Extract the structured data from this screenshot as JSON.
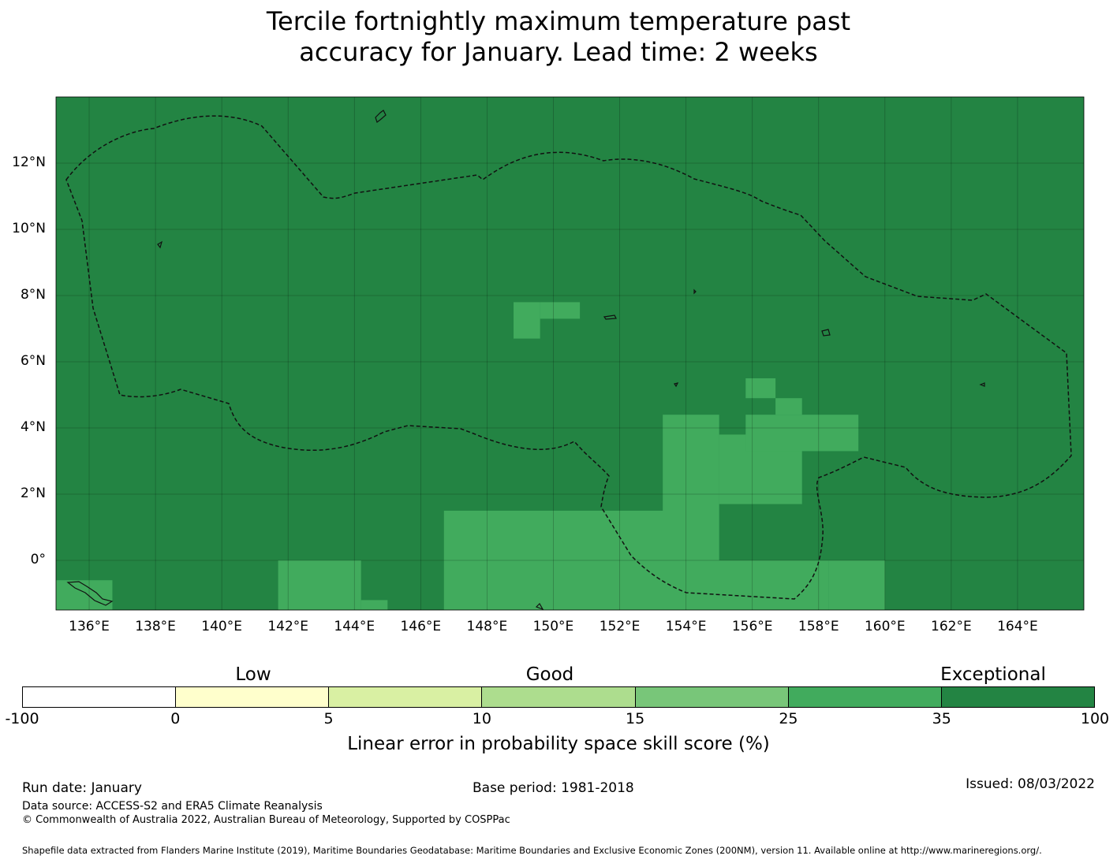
{
  "title": {
    "line1": "Tercile fortnightly maximum temperature past",
    "line2": "accuracy for January. Lead time: 2 weeks"
  },
  "map": {
    "x_ticks": [
      "136°E",
      "138°E",
      "140°E",
      "142°E",
      "144°E",
      "146°E",
      "148°E",
      "150°E",
      "152°E",
      "154°E",
      "156°E",
      "158°E",
      "160°E",
      "162°E",
      "164°E"
    ],
    "y_ticks": [
      "12°N",
      "10°N",
      "8°N",
      "6°N",
      "4°N",
      "2°N",
      "0°"
    ],
    "background_category_color": "#238443",
    "patch_category_color": "#41ab5d"
  },
  "chart_data": {
    "type": "heatmap",
    "title": "Tercile fortnightly maximum temperature past accuracy for January. Lead time: 2 weeks",
    "x_range_lon": [
      135.0,
      166.0
    ],
    "y_range_lat": [
      -1.5,
      14.0
    ],
    "default_class": "35-100",
    "cells_25_35_lon_lat_ranges": [
      {
        "lon": [
          148.8,
          149.6
        ],
        "lat": [
          6.7,
          7.8
        ]
      },
      {
        "lon": [
          149.6,
          150.8
        ],
        "lat": [
          7.3,
          7.8
        ]
      },
      {
        "lon": [
          146.7,
          155.0
        ],
        "lat": [
          -1.5,
          1.5
        ]
      },
      {
        "lon": [
          141.7,
          144.2
        ],
        "lat": [
          -1.5,
          0.0
        ]
      },
      {
        "lon": [
          144.2,
          145.0
        ],
        "lat": [
          -1.5,
          -1.2
        ]
      },
      {
        "lon": [
          135.0,
          136.7
        ],
        "lat": [
          -1.5,
          -0.6
        ]
      },
      {
        "lon": [
          153.3,
          158.3
        ],
        "lat": [
          -1.5,
          0.0
        ]
      },
      {
        "lon": [
          158.3,
          160.0
        ],
        "lat": [
          -1.5,
          0.0
        ]
      },
      {
        "lon": [
          153.3,
          155.0
        ],
        "lat": [
          1.5,
          4.4
        ]
      },
      {
        "lon": [
          155.0,
          157.5
        ],
        "lat": [
          1.7,
          3.8
        ]
      },
      {
        "lon": [
          155.8,
          159.2
        ],
        "lat": [
          3.3,
          4.4
        ]
      },
      {
        "lon": [
          156.7,
          157.5
        ],
        "lat": [
          4.4,
          4.9
        ]
      },
      {
        "lon": [
          155.8,
          156.7
        ],
        "lat": [
          4.9,
          5.5
        ]
      }
    ]
  },
  "colorbar": {
    "category_labels": [
      "Low",
      "Good",
      "Exceptional"
    ],
    "ticks": [
      "-100",
      "0",
      "5",
      "10",
      "15",
      "25",
      "35",
      "100"
    ],
    "colors": [
      "#ffffff",
      "#ffffcc",
      "#d9f0a3",
      "#addd8e",
      "#78c679",
      "#41ab5d",
      "#238443"
    ],
    "label": "Linear error in probability space skill score (%)"
  },
  "footer": {
    "run_date": "Run date: January",
    "base_period": "Base period: 1981-2018",
    "issued": "Issued: 08/03/2022",
    "data_source": "Data source: ACCESS-S2 and ERA5 Climate Reanalysis",
    "copyright": "© Commonwealth of Australia 2022, Australian Bureau of Meteorology, Supported by COSPPac",
    "shapefile": "Shapefile data extracted from Flanders Marine Institute (2019), Maritime Boundaries Geodatabase: Maritime Boundaries and Exclusive Economic Zones (200NM), version 11. Available online at http://www.marineregions.org/."
  }
}
